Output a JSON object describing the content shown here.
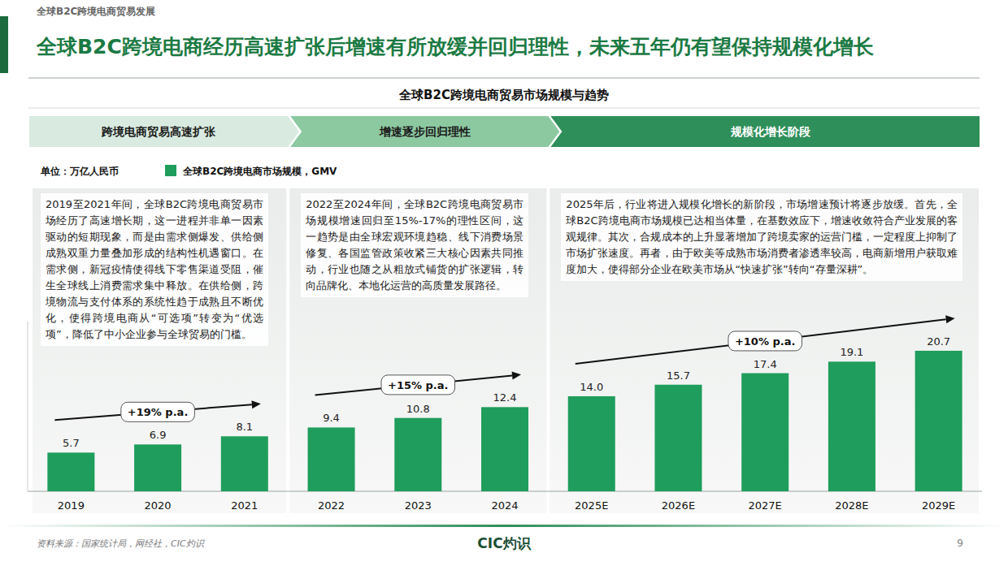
{
  "header": {
    "section": "全球B2C跨境电商贸易发展",
    "title": "全球B2C跨境电商经历高速扩张后增速有所放缓并回归理性，未来五年仍有望保持规模化增长"
  },
  "chart_data": {
    "type": "bar",
    "title": "全球B2C跨境电商贸易市场规模与趋势",
    "y_label": "单位：万亿人民币",
    "categories": [
      "2019",
      "2020",
      "2021",
      "2022",
      "2023",
      "2024",
      "2025E",
      "2026E",
      "2027E",
      "2028E",
      "2029E"
    ],
    "series": [
      {
        "name": "全球B2C跨境电商市场规模，GMV",
        "color": "#1f9d5c",
        "values": [
          5.7,
          6.9,
          8.1,
          9.4,
          10.8,
          12.4,
          14.0,
          15.7,
          17.4,
          19.1,
          20.7
        ],
        "value_labels": [
          "5.7",
          "6.9",
          "8.1",
          "9.4",
          "10.8",
          "12.4",
          "14.0",
          "15.7",
          "17.4",
          "19.1",
          "20.7"
        ]
      }
    ],
    "ylim": [
      0,
      25
    ],
    "yticks": [
      0
    ],
    "tick_labels": "x",
    "data_labels": true,
    "grid": false,
    "legend": "top-left",
    "phases": [
      {
        "label": "跨境电商贸易高速扩张",
        "start": "2019",
        "end": "2021",
        "growth": "+19% p.a.",
        "text": "2019至2021年间，全球B2C跨境电商贸易市场经历了高速增长期，这一进程并非单一因素驱动的短期现象，而是由需求侧爆发、供给侧成熟双重力量叠加形成的结构性机遇窗口。在需求侧，新冠疫情使得线下零售渠道受阻，催生全球线上消费需求集中释放。在供给侧，跨境物流与支付体系的系统性趋于成熟且不断优化，使得跨境电商从“可选项”转变为“优选项”，降低了中小企业参与全球贸易的门槛。"
      },
      {
        "label": "增速逐步回归理性",
        "start": "2022",
        "end": "2024",
        "growth": "+15% p.a.",
        "text": "2022至2024年间，全球B2C跨境电商贸易市场规模增速回归至15%-17%的理性区间，这一趋势是由全球宏观环境趋稳、线下消费场景修复、各国监管政策收紧三大核心因素共同推动，行业也随之从粗放式铺货的扩张逻辑，转向品牌化、本地化运营的高质量发展路径。"
      },
      {
        "label": "规模化增长阶段",
        "start": "2025E",
        "end": "2029E",
        "growth": "+10% p.a.",
        "text": "2025年后，行业将进入规模化增长的新阶段，市场增速预计将逐步放缓。首先，全球B2C跨境电商市场规模已达相当体量，在基数效应下，增速收敛符合产业发展的客观规律。其次，合规成本的上升显著增加了跨境卖家的运营门槛，一定程度上抑制了市场扩张速度。再者，由于欧美等成熟市场消费者渗透率较高，电商新增用户获取难度加大，使得部分企业在欧美市场从“快速扩张”转向“存量深耕”。"
      }
    ]
  },
  "footer": {
    "source": "资料来源：国家统计局，网经社，CIC灼识",
    "logo": "CIC灼识",
    "page": "9"
  }
}
